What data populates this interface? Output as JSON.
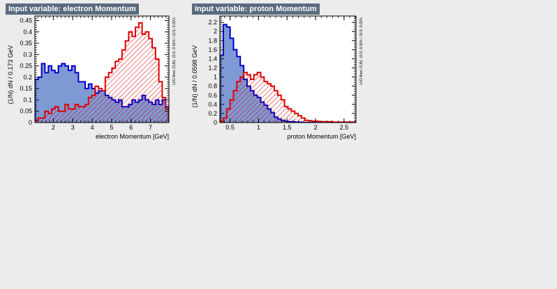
{
  "chart_data": [
    {
      "type": "histogram",
      "title": "Input variable: electron Momentum",
      "xlabel": "electron Momentum  [GeV]",
      "ylabel": "(1/N) dN  /  0.173 GeV",
      "side_label": "U/O-flow (S,B): (0.0, 0.0)% / (0.0, 0.0)%",
      "xlim": [
        1.05,
        7.95
      ],
      "ylim": [
        0,
        0.47
      ],
      "xticks": [
        2,
        3,
        4,
        5,
        6,
        7
      ],
      "yticks": [
        0,
        0.05,
        0.1,
        0.15,
        0.2,
        0.25,
        0.3,
        0.35,
        0.4,
        0.45
      ],
      "grid": false,
      "series": [
        {
          "color": "#0000cc",
          "fill": "#7e99d4",
          "style": "solid",
          "values": [
            0.19,
            0.2,
            0.26,
            0.22,
            0.25,
            0.23,
            0.22,
            0.25,
            0.26,
            0.25,
            0.23,
            0.25,
            0.22,
            0.18,
            0.18,
            0.15,
            0.17,
            0.15,
            0.13,
            0.14,
            0.14,
            0.12,
            0.11,
            0.1,
            0.09,
            0.1,
            0.07,
            0.07,
            0.08,
            0.1,
            0.09,
            0.1,
            0.12,
            0.1,
            0.09,
            0.08,
            0.1,
            0.08,
            0.1,
            0.07
          ]
        },
        {
          "color": "#dd0000",
          "fill": "#dd0000",
          "style": "hatched",
          "values": [
            0.01,
            0.02,
            0.02,
            0.05,
            0.04,
            0.06,
            0.07,
            0.05,
            0.05,
            0.08,
            0.06,
            0.06,
            0.08,
            0.07,
            0.07,
            0.08,
            0.11,
            0.12,
            0.16,
            0.15,
            0.14,
            0.2,
            0.22,
            0.24,
            0.27,
            0.28,
            0.32,
            0.36,
            0.4,
            0.38,
            0.42,
            0.44,
            0.39,
            0.4,
            0.37,
            0.33,
            0.28,
            0.18,
            0.11,
            0.06
          ]
        }
      ]
    },
    {
      "type": "histogram",
      "title": "Input variable: proton Momentum",
      "xlabel": "proton Momentum  [GeV]",
      "ylabel": "(1/N) dN  /  0.0598 GeV",
      "side_label": "U/O-flow (S,B): (0.0, 0.0)% / (0.0, 0.0)%",
      "xlim": [
        0.32,
        2.71
      ],
      "ylim": [
        0,
        2.34
      ],
      "xticks": [
        0.5,
        1,
        1.5,
        2,
        2.5
      ],
      "xtick_labels": [
        "0.5",
        "1",
        "1.5",
        "2",
        "2.5"
      ],
      "yticks": [
        0,
        0.2,
        0.4,
        0.6,
        0.8,
        1,
        1.2,
        1.4,
        1.6,
        1.8,
        2,
        2.2
      ],
      "grid": false,
      "series": [
        {
          "color": "#0000cc",
          "fill": "#7e99d4",
          "style": "solid",
          "values": [
            1.48,
            2.15,
            2.1,
            1.85,
            1.6,
            1.45,
            1.25,
            0.95,
            0.8,
            0.7,
            0.6,
            0.55,
            0.45,
            0.38,
            0.3,
            0.22,
            0.12,
            0.08,
            0.05,
            0.03,
            0.02,
            0.02,
            0.01,
            0.01,
            0,
            0,
            0,
            0,
            0,
            0,
            0,
            0,
            0,
            0,
            0,
            0,
            0,
            0,
            0,
            0
          ]
        },
        {
          "color": "#dd0000",
          "fill": "#dd0000",
          "style": "hatched",
          "values": [
            0.02,
            0.1,
            0.3,
            0.5,
            0.7,
            0.9,
            1.0,
            1.1,
            1.05,
            0.95,
            1.05,
            1.1,
            1.0,
            0.9,
            0.85,
            0.8,
            0.7,
            0.6,
            0.5,
            0.35,
            0.3,
            0.25,
            0.2,
            0.15,
            0.1,
            0.05,
            0.04,
            0.03,
            0.03,
            0.02,
            0.02,
            0.02,
            0.02,
            0.01,
            0.01,
            0.01,
            0.01,
            0.01,
            0.01,
            0.01
          ]
        }
      ]
    }
  ]
}
